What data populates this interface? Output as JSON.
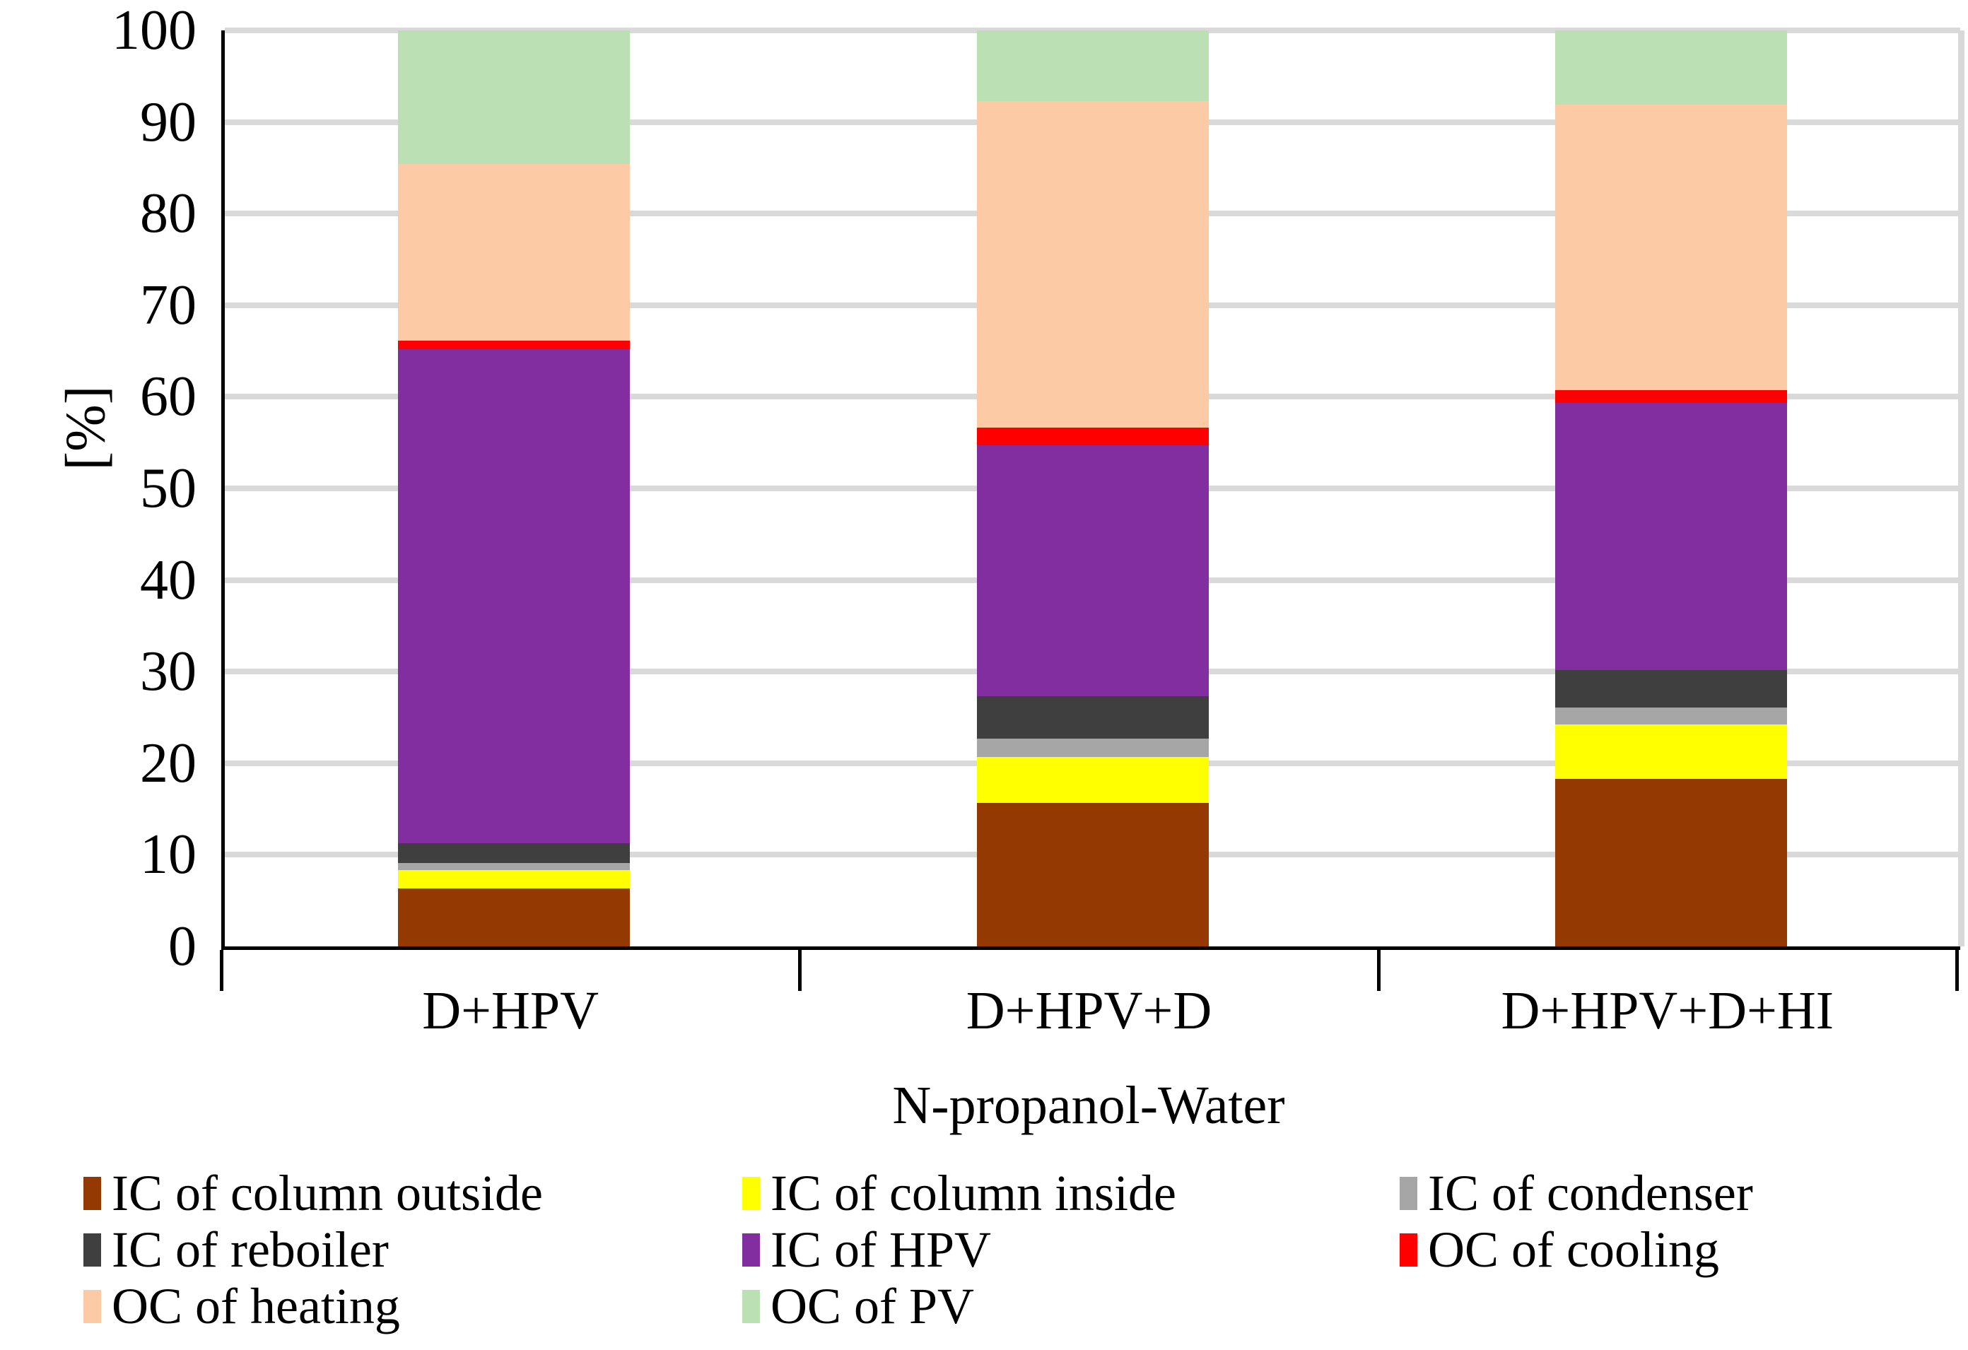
{
  "chart_data": {
    "type": "bar",
    "stacked": true,
    "orientation": "vertical",
    "xlabel": "N-propanol-Water",
    "ylabel": "[%]",
    "ylim": [
      0,
      100
    ],
    "ytick_values": [
      0,
      10,
      20,
      30,
      40,
      50,
      60,
      70,
      80,
      90,
      100
    ],
    "grid": "horizontal",
    "legend_position": "bottom",
    "legend_columns": 3,
    "categories": [
      "D+HPV",
      "D+HPV+D",
      "D+HPV+D+HI"
    ],
    "series": [
      {
        "name": "IC of column outside",
        "color": "#953902",
        "values": [
          6.3,
          15.7,
          18.3
        ]
      },
      {
        "name": "IC of column inside",
        "color": "#ffff00",
        "values": [
          2.0,
          5.0,
          5.9
        ]
      },
      {
        "name": "IC of condenser",
        "color": "#a6a6a6",
        "values": [
          0.8,
          2.0,
          1.9
        ]
      },
      {
        "name": "IC of reboiler",
        "color": "#3f3f3f",
        "values": [
          2.2,
          4.6,
          4.1
        ]
      },
      {
        "name": "IC of HPV",
        "color": "#822da0",
        "values": [
          53.9,
          27.4,
          29.1
        ]
      },
      {
        "name": "OC of cooling",
        "color": "#ff0000",
        "values": [
          0.9,
          1.9,
          1.4
        ]
      },
      {
        "name": "OC of heating",
        "color": "#fccba6",
        "values": [
          19.3,
          35.7,
          31.2
        ]
      },
      {
        "name": "OC of PV",
        "color": "#bbe0b3",
        "values": [
          14.6,
          7.7,
          8.1
        ]
      }
    ],
    "colors": {
      "background": "#ffffff",
      "gridline": "#d9d9d9",
      "axis": "#000000"
    }
  }
}
